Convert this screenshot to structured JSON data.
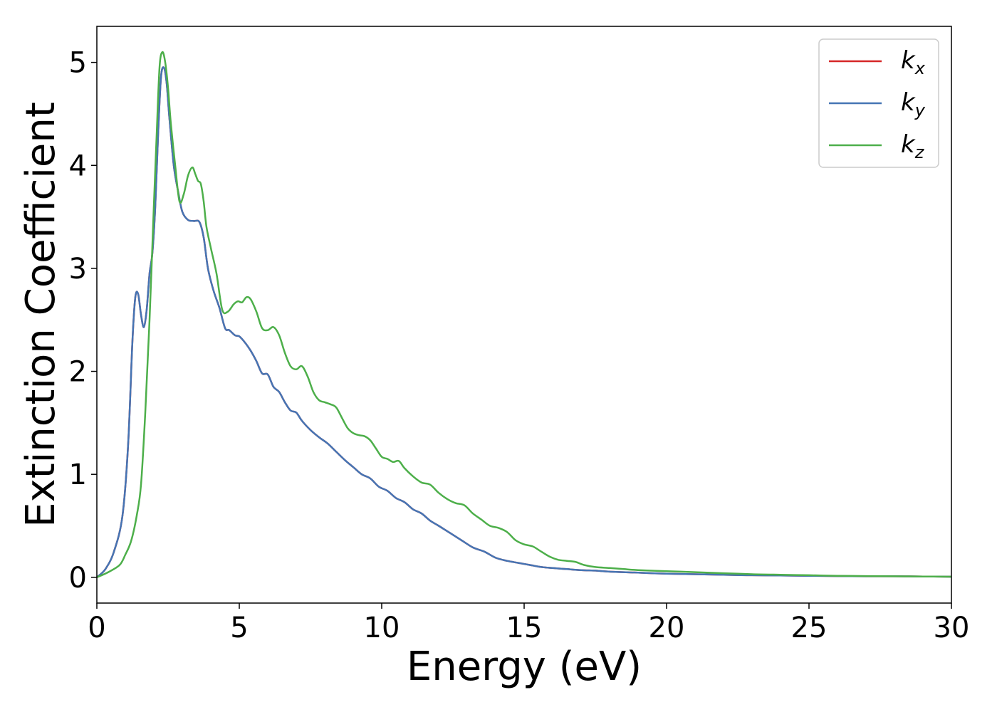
{
  "chart_data": {
    "type": "line",
    "title": "",
    "xlabel": "Energy (eV)",
    "ylabel": "Extinction Coefficient",
    "xlim": [
      0,
      30
    ],
    "ylim": [
      -0.25,
      5.35
    ],
    "xticks": [
      0,
      5,
      10,
      15,
      20,
      25,
      30
    ],
    "yticks": [
      0,
      1,
      2,
      3,
      4,
      5
    ],
    "grid": false,
    "legend_position": "top-right",
    "colors": {
      "kx": "#d62728",
      "ky": "#4575b4",
      "kz": "#4daf4a"
    },
    "series": [
      {
        "key": "kx",
        "name": "k",
        "subscript": "x",
        "x": [
          0,
          0.3,
          0.6,
          0.9,
          1.1,
          1.25,
          1.35,
          1.45,
          1.55,
          1.65,
          1.75,
          1.85,
          1.95,
          2.05,
          2.15,
          2.25,
          2.35,
          2.45,
          2.55,
          2.7,
          2.85,
          3.0,
          3.2,
          3.4,
          3.6,
          3.75,
          3.9,
          4.1,
          4.3,
          4.5,
          4.65,
          4.85,
          5.0,
          5.2,
          5.4,
          5.6,
          5.8,
          6.0,
          6.2,
          6.4,
          6.6,
          6.8,
          7.0,
          7.2,
          7.5,
          7.8,
          8.1,
          8.4,
          8.7,
          9.0,
          9.3,
          9.6,
          9.9,
          10.2,
          10.5,
          10.8,
          11.1,
          11.4,
          11.7,
          12.0,
          12.4,
          12.8,
          13.2,
          13.6,
          14.0,
          14.4,
          14.8,
          15.2,
          15.6,
          16.0,
          16.5,
          17.0,
          17.5,
          18.0,
          19.0,
          20.0,
          21.0,
          22.0,
          23.0,
          24.0,
          25.0,
          26.0,
          27.0,
          28.0,
          29.0,
          30.0
        ],
        "y": [
          0.0,
          0.08,
          0.25,
          0.6,
          1.3,
          2.3,
          2.72,
          2.75,
          2.55,
          2.43,
          2.6,
          2.95,
          3.15,
          3.6,
          4.3,
          4.85,
          4.95,
          4.8,
          4.45,
          4.0,
          3.75,
          3.55,
          3.47,
          3.46,
          3.45,
          3.3,
          3.0,
          2.78,
          2.62,
          2.42,
          2.4,
          2.35,
          2.34,
          2.28,
          2.2,
          2.1,
          1.98,
          1.97,
          1.85,
          1.8,
          1.7,
          1.62,
          1.6,
          1.52,
          1.43,
          1.36,
          1.3,
          1.22,
          1.14,
          1.07,
          1.0,
          0.96,
          0.88,
          0.84,
          0.77,
          0.73,
          0.66,
          0.62,
          0.55,
          0.5,
          0.43,
          0.36,
          0.29,
          0.25,
          0.19,
          0.16,
          0.14,
          0.12,
          0.1,
          0.09,
          0.08,
          0.07,
          0.065,
          0.055,
          0.045,
          0.035,
          0.03,
          0.025,
          0.02,
          0.018,
          0.015,
          0.012,
          0.01,
          0.01,
          0.008,
          0.006
        ]
      },
      {
        "key": "ky",
        "name": "k",
        "subscript": "y",
        "x": [
          0,
          0.3,
          0.6,
          0.9,
          1.1,
          1.25,
          1.35,
          1.45,
          1.55,
          1.65,
          1.75,
          1.85,
          1.95,
          2.05,
          2.15,
          2.25,
          2.35,
          2.45,
          2.55,
          2.7,
          2.85,
          3.0,
          3.2,
          3.4,
          3.6,
          3.75,
          3.9,
          4.1,
          4.3,
          4.5,
          4.65,
          4.85,
          5.0,
          5.2,
          5.4,
          5.6,
          5.8,
          6.0,
          6.2,
          6.4,
          6.6,
          6.8,
          7.0,
          7.2,
          7.5,
          7.8,
          8.1,
          8.4,
          8.7,
          9.0,
          9.3,
          9.6,
          9.9,
          10.2,
          10.5,
          10.8,
          11.1,
          11.4,
          11.7,
          12.0,
          12.4,
          12.8,
          13.2,
          13.6,
          14.0,
          14.4,
          14.8,
          15.2,
          15.6,
          16.0,
          16.5,
          17.0,
          17.5,
          18.0,
          19.0,
          20.0,
          21.0,
          22.0,
          23.0,
          24.0,
          25.0,
          26.0,
          27.0,
          28.0,
          29.0,
          30.0
        ],
        "y": [
          0.0,
          0.08,
          0.25,
          0.6,
          1.3,
          2.3,
          2.72,
          2.75,
          2.55,
          2.43,
          2.6,
          2.95,
          3.15,
          3.6,
          4.3,
          4.85,
          4.95,
          4.8,
          4.45,
          4.0,
          3.75,
          3.55,
          3.47,
          3.46,
          3.45,
          3.3,
          3.0,
          2.78,
          2.62,
          2.42,
          2.4,
          2.35,
          2.34,
          2.28,
          2.2,
          2.1,
          1.98,
          1.97,
          1.85,
          1.8,
          1.7,
          1.62,
          1.6,
          1.52,
          1.43,
          1.36,
          1.3,
          1.22,
          1.14,
          1.07,
          1.0,
          0.96,
          0.88,
          0.84,
          0.77,
          0.73,
          0.66,
          0.62,
          0.55,
          0.5,
          0.43,
          0.36,
          0.29,
          0.25,
          0.19,
          0.16,
          0.14,
          0.12,
          0.1,
          0.09,
          0.08,
          0.07,
          0.065,
          0.055,
          0.045,
          0.035,
          0.03,
          0.025,
          0.02,
          0.018,
          0.015,
          0.012,
          0.01,
          0.01,
          0.008,
          0.006
        ]
      },
      {
        "key": "kz",
        "name": "k",
        "subscript": "z",
        "x": [
          0,
          0.4,
          0.8,
          1.0,
          1.2,
          1.4,
          1.55,
          1.7,
          1.85,
          2.0,
          2.1,
          2.2,
          2.3,
          2.4,
          2.5,
          2.6,
          2.75,
          2.9,
          3.05,
          3.2,
          3.35,
          3.45,
          3.55,
          3.65,
          3.75,
          3.85,
          4.0,
          4.2,
          4.4,
          4.6,
          4.8,
          4.95,
          5.1,
          5.25,
          5.4,
          5.6,
          5.8,
          6.0,
          6.2,
          6.4,
          6.6,
          6.8,
          7.0,
          7.2,
          7.4,
          7.6,
          7.8,
          8.0,
          8.2,
          8.4,
          8.6,
          8.8,
          9.0,
          9.2,
          9.4,
          9.6,
          9.8,
          10.0,
          10.2,
          10.4,
          10.6,
          10.8,
          11.1,
          11.4,
          11.7,
          12.0,
          12.3,
          12.6,
          12.9,
          13.2,
          13.5,
          13.8,
          14.1,
          14.4,
          14.7,
          15.0,
          15.3,
          15.6,
          15.9,
          16.2,
          16.5,
          16.8,
          17.1,
          17.5,
          18.0,
          18.5,
          19.0,
          20.0,
          21.0,
          22.0,
          23.0,
          24.0,
          25.0,
          26.0,
          27.0,
          28.0,
          29.0,
          30.0
        ],
        "y": [
          0.0,
          0.05,
          0.12,
          0.22,
          0.35,
          0.6,
          0.9,
          1.6,
          2.5,
          3.6,
          4.3,
          4.95,
          5.1,
          5.0,
          4.75,
          4.4,
          4.0,
          3.65,
          3.72,
          3.9,
          3.98,
          3.92,
          3.85,
          3.82,
          3.65,
          3.4,
          3.2,
          2.95,
          2.6,
          2.58,
          2.65,
          2.68,
          2.67,
          2.72,
          2.7,
          2.58,
          2.42,
          2.4,
          2.43,
          2.35,
          2.18,
          2.05,
          2.02,
          2.05,
          1.95,
          1.8,
          1.72,
          1.7,
          1.68,
          1.65,
          1.55,
          1.45,
          1.4,
          1.38,
          1.37,
          1.33,
          1.25,
          1.17,
          1.15,
          1.12,
          1.13,
          1.06,
          0.98,
          0.92,
          0.9,
          0.82,
          0.76,
          0.72,
          0.7,
          0.62,
          0.56,
          0.5,
          0.48,
          0.44,
          0.36,
          0.32,
          0.3,
          0.25,
          0.2,
          0.17,
          0.16,
          0.15,
          0.12,
          0.1,
          0.09,
          0.08,
          0.07,
          0.06,
          0.05,
          0.04,
          0.03,
          0.025,
          0.02,
          0.015,
          0.012,
          0.01,
          0.008,
          0.006
        ]
      }
    ]
  }
}
